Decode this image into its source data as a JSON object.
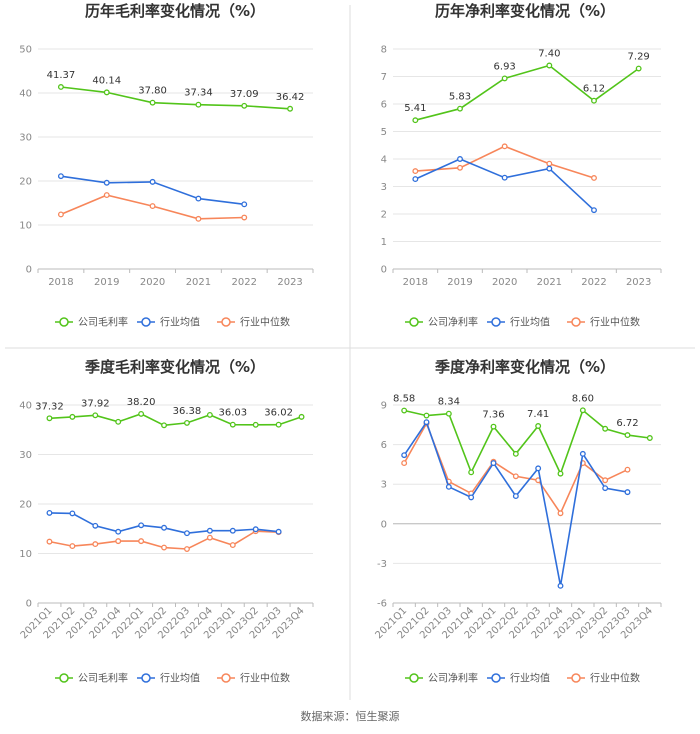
{
  "source": "数据来源：恒生聚源",
  "colors": {
    "company": "#52c41a",
    "avg": "#2f6fdb",
    "median": "#f7865a",
    "grid": "#e6e6e6",
    "axis": "#bbbbbb",
    "divider": "#dddddd"
  },
  "chart_data": [
    {
      "type": "line",
      "title": "历年毛利率变化情况（%）",
      "categories": [
        "2018",
        "2019",
        "2020",
        "2021",
        "2022",
        "2023"
      ],
      "ylim": [
        0,
        50
      ],
      "yticks": [
        0,
        10,
        20,
        30,
        40,
        50
      ],
      "rotate_x": false,
      "series": [
        {
          "name": "公司毛利率",
          "key": "company",
          "values": [
            41.37,
            40.14,
            37.8,
            37.34,
            37.09,
            36.42
          ],
          "labels": [
            "41.37",
            "40.14",
            "37.80",
            "37.34",
            "37.09",
            "36.42"
          ]
        },
        {
          "name": "行业均值",
          "key": "avg",
          "values": [
            21.1,
            19.6,
            19.8,
            16.0,
            14.7,
            null
          ]
        },
        {
          "name": "行业中位数",
          "key": "median",
          "values": [
            12.4,
            16.8,
            14.3,
            11.4,
            11.7,
            null
          ]
        }
      ]
    },
    {
      "type": "line",
      "title": "历年净利率变化情况（%）",
      "categories": [
        "2018",
        "2019",
        "2020",
        "2021",
        "2022",
        "2023"
      ],
      "ylim": [
        0,
        8
      ],
      "yticks": [
        0,
        1,
        2,
        3,
        4,
        5,
        6,
        7,
        8
      ],
      "rotate_x": false,
      "series": [
        {
          "name": "公司净利率",
          "key": "company",
          "values": [
            5.41,
            5.83,
            6.93,
            7.4,
            6.12,
            7.29
          ],
          "labels": [
            "5.41",
            "5.83",
            "6.93",
            "7.40",
            "6.12",
            "7.29"
          ]
        },
        {
          "name": "行业均值",
          "key": "avg",
          "values": [
            3.27,
            4.0,
            3.32,
            3.65,
            2.14,
            null
          ]
        },
        {
          "name": "行业中位数",
          "key": "median",
          "values": [
            3.56,
            3.68,
            4.46,
            3.83,
            3.31,
            null
          ]
        }
      ]
    },
    {
      "type": "line",
      "title": "季度毛利率变化情况（%）",
      "categories": [
        "2021Q1",
        "2021Q2",
        "2021Q3",
        "2021Q4",
        "2022Q1",
        "2022Q2",
        "2022Q3",
        "2022Q4",
        "2023Q1",
        "2023Q2",
        "2023Q3",
        "2023Q4"
      ],
      "ylim": [
        0,
        40
      ],
      "yticks": [
        0,
        10,
        20,
        30,
        40
      ],
      "rotate_x": true,
      "series": [
        {
          "name": "公司毛利率",
          "key": "company",
          "values": [
            37.32,
            37.6,
            37.92,
            36.6,
            38.2,
            35.9,
            36.38,
            38.0,
            36.03,
            36.0,
            36.02,
            37.6
          ],
          "labels": [
            "37.32",
            "",
            "37.92",
            "",
            "38.20",
            "",
            "36.38",
            "",
            "36.03",
            "",
            "36.02",
            ""
          ]
        },
        {
          "name": "行业均值",
          "key": "avg",
          "values": [
            18.2,
            18.1,
            15.6,
            14.4,
            15.7,
            15.2,
            14.1,
            14.6,
            14.6,
            14.9,
            14.4,
            null
          ]
        },
        {
          "name": "行业中位数",
          "key": "median",
          "values": [
            12.4,
            11.5,
            11.9,
            12.5,
            12.5,
            11.2,
            10.9,
            13.2,
            11.7,
            14.5,
            14.3,
            null
          ]
        }
      ]
    },
    {
      "type": "line",
      "title": "季度净利率变化情况（%）",
      "categories": [
        "2021Q1",
        "2021Q2",
        "2021Q3",
        "2021Q4",
        "2022Q1",
        "2022Q2",
        "2022Q3",
        "2022Q4",
        "2023Q1",
        "2023Q2",
        "2023Q3",
        "2023Q4"
      ],
      "ylim": [
        -6,
        9
      ],
      "yticks": [
        -6,
        -3,
        0,
        3,
        6,
        9
      ],
      "rotate_x": true,
      "series": [
        {
          "name": "公司净利率",
          "key": "company",
          "values": [
            8.58,
            8.2,
            8.34,
            3.9,
            7.36,
            5.3,
            7.41,
            3.8,
            8.6,
            7.2,
            6.72,
            6.5
          ],
          "labels": [
            "8.58",
            "",
            "8.34",
            "",
            "7.36",
            "",
            "7.41",
            "",
            "8.60",
            "",
            "6.72",
            ""
          ]
        },
        {
          "name": "行业均值",
          "key": "avg",
          "values": [
            5.2,
            7.7,
            2.8,
            2.0,
            4.6,
            2.1,
            4.2,
            -4.7,
            5.3,
            2.7,
            2.4,
            null
          ]
        },
        {
          "name": "行业中位数",
          "key": "median",
          "values": [
            4.6,
            7.6,
            3.2,
            2.3,
            4.7,
            3.6,
            3.3,
            0.8,
            4.6,
            3.3,
            4.1,
            null
          ]
        }
      ]
    }
  ]
}
